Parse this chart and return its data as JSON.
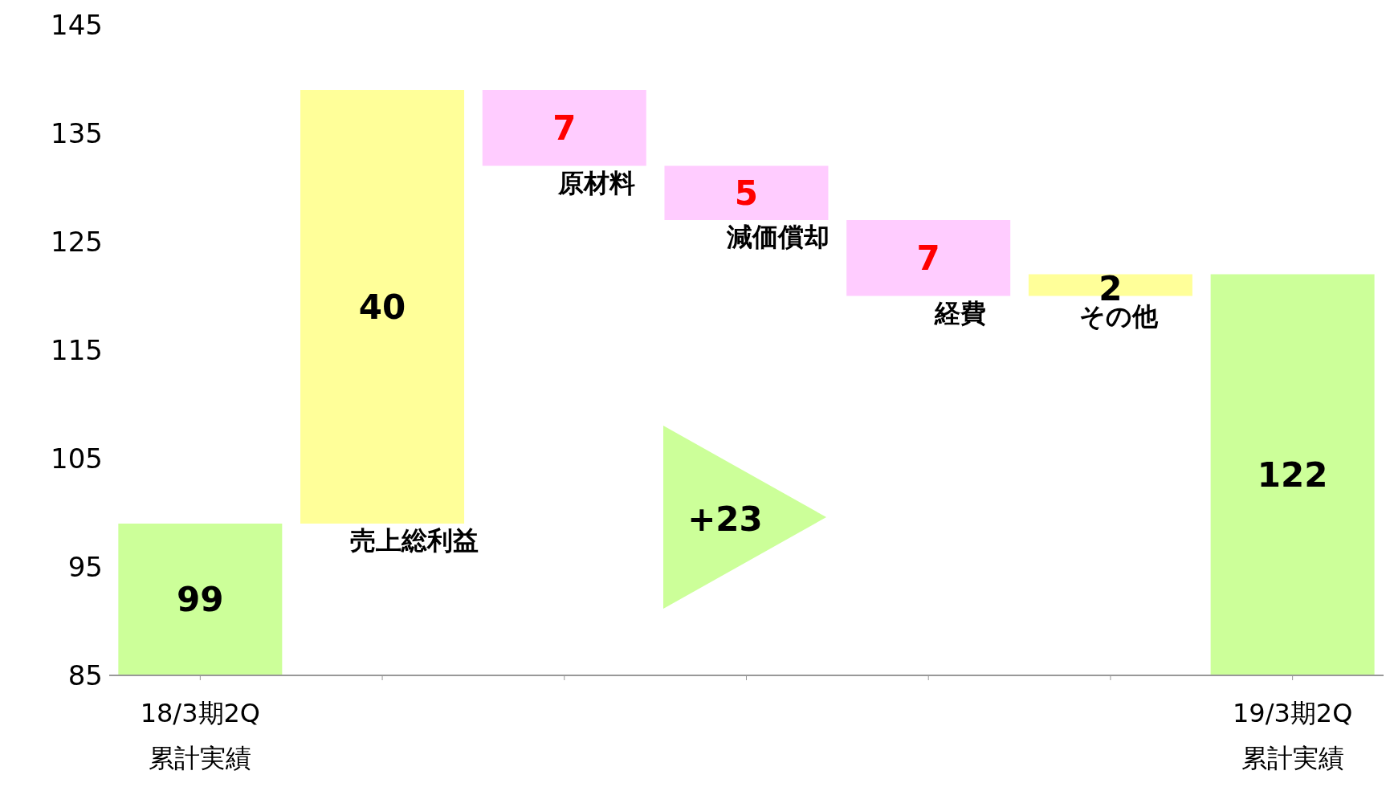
{
  "chart_data": {
    "type": "bar",
    "categories": [
      "18/3期2Q\n累計実績",
      "売上総利益",
      "原材料",
      "減価償却",
      "経費",
      "その他",
      "19/3期2Q\n累計実績"
    ],
    "values": [
      99,
      40,
      -7,
      -5,
      -7,
      2,
      122
    ],
    "base": [
      null,
      99,
      139,
      132,
      127,
      120,
      null
    ],
    "colors": [
      "#ccff99",
      "#ffff99",
      "#ffccff",
      "#ffccff",
      "#ffccff",
      "#ffff99",
      "#ccff99"
    ],
    "value_labels": [
      "99",
      "40",
      "7",
      "5",
      "7",
      "2",
      "122"
    ],
    "ylim": [
      85,
      145
    ],
    "yticks": [
      85,
      95,
      105,
      115,
      125,
      135,
      145
    ],
    "annotations": [
      "+23"
    ]
  }
}
